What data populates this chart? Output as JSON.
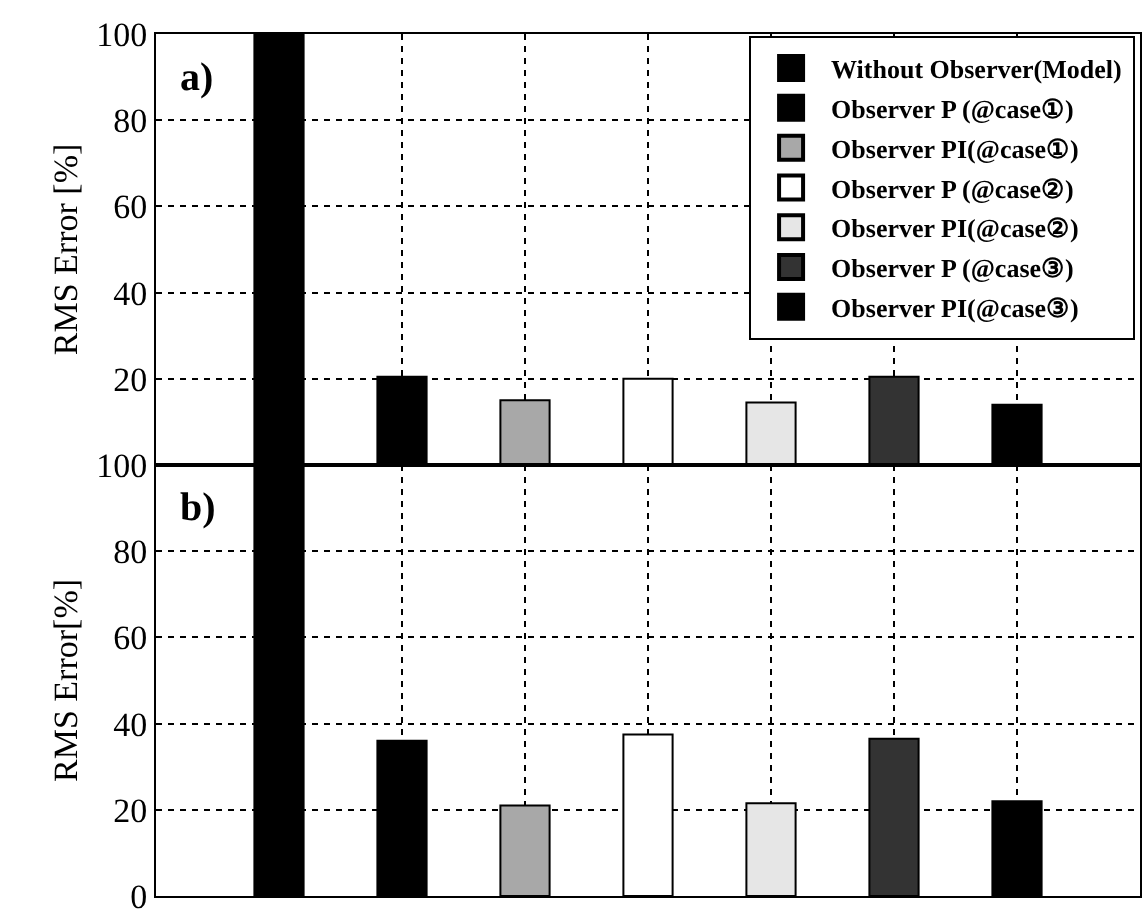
{
  "chart_data": [
    {
      "type": "bar",
      "categories": [
        null,
        null,
        null,
        null,
        null,
        null,
        null
      ],
      "ylabel": "RMS Error [%]",
      "annotations": [
        "a)"
      ],
      "ylim": [
        0,
        100
      ],
      "yticks": [
        20,
        40,
        60,
        80,
        100
      ],
      "grid": true,
      "legend": "top right",
      "tick_labels": "y",
      "series": [
        {
          "name": "Without Observer(Model)",
          "color": "#000000",
          "values": [
            100,
            null,
            null,
            null,
            null,
            null,
            null
          ]
        },
        {
          "name": "Observer P (@case①)",
          "color": "#000000",
          "values": [
            null,
            20.5,
            null,
            null,
            null,
            null,
            null
          ]
        },
        {
          "name": "Observer PI(@case①)",
          "color": "#a8a8a8",
          "values": [
            null,
            null,
            15,
            null,
            null,
            null,
            null
          ]
        },
        {
          "name": "Observer P (@case②)",
          "color": "#ffffff",
          "values": [
            null,
            null,
            null,
            20,
            null,
            null,
            null
          ]
        },
        {
          "name": "Observer PI(@case②)",
          "color": "#e6e6e6",
          "values": [
            null,
            null,
            null,
            null,
            14.5,
            null,
            null
          ]
        },
        {
          "name": "Observer P (@case③)",
          "color": "#333333",
          "values": [
            null,
            null,
            null,
            null,
            null,
            20.5,
            null
          ]
        },
        {
          "name": "Observer PI(@case③)",
          "color": "#000000",
          "values": [
            null,
            null,
            null,
            null,
            null,
            null,
            14
          ]
        }
      ]
    },
    {
      "type": "bar",
      "categories": [
        null,
        null,
        null,
        null,
        null,
        null,
        null
      ],
      "ylabel": "RMS Error[%]",
      "annotations": [
        "b)"
      ],
      "ylim": [
        0,
        100
      ],
      "yticks": [
        0,
        20,
        40,
        60,
        80,
        100
      ],
      "grid": true,
      "tick_labels": "y",
      "series": [
        {
          "color": "#000000",
          "values": [
            100,
            null,
            null,
            null,
            null,
            null,
            null
          ]
        },
        {
          "color": "#000000",
          "values": [
            null,
            36,
            null,
            null,
            null,
            null,
            null
          ]
        },
        {
          "color": "#a8a8a8",
          "values": [
            null,
            null,
            21,
            null,
            null,
            null,
            null
          ]
        },
        {
          "color": "#ffffff",
          "values": [
            null,
            null,
            null,
            37.5,
            null,
            null,
            null
          ]
        },
        {
          "color": "#e6e6e6",
          "values": [
            null,
            null,
            null,
            null,
            21.5,
            null,
            null
          ]
        },
        {
          "color": "#333333",
          "values": [
            null,
            null,
            null,
            null,
            null,
            36.5,
            null
          ]
        },
        {
          "color": "#000000",
          "values": [
            null,
            null,
            null,
            null,
            null,
            null,
            22
          ]
        }
      ]
    }
  ]
}
